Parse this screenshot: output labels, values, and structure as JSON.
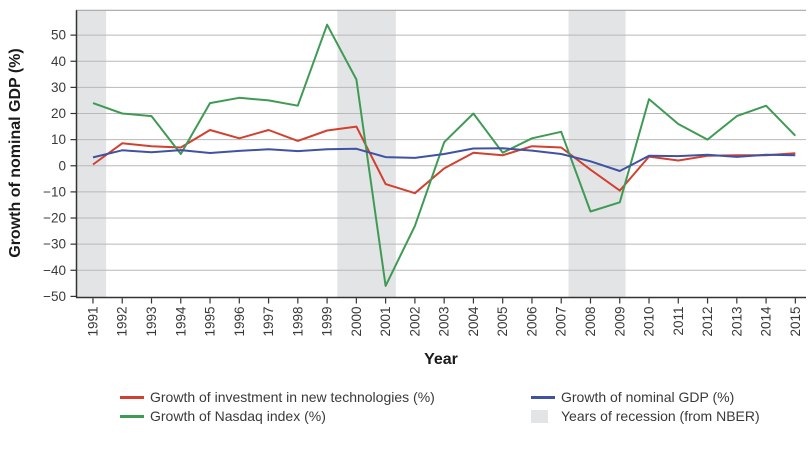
{
  "figure": {
    "y_axis_title": "Growth of nominal GDP (%)",
    "x_axis_title": "Year"
  },
  "colors": {
    "investment_line": "#d2402f",
    "nasdaq_line": "#3f9b54",
    "gdp_line": "#4052a2",
    "recession_band": "#e3e4e6",
    "gridline": "#b8b8b8",
    "plot_top_border": "#a6a6a6",
    "axis": "#333333",
    "tick_text": "#3a3a3a"
  },
  "legend": {
    "items": [
      {
        "label": "Growth of investment in new technologies (%)",
        "color": "#d2402f",
        "type": "line"
      },
      {
        "label": "Growth of Nasdaq index (%)",
        "color": "#3f9b54",
        "type": "line"
      },
      {
        "label": "Growth of nominal GDP (%)",
        "color": "#4052a2",
        "type": "line"
      },
      {
        "label": "Years of recession (from NBER)",
        "color": "#e3e4e6",
        "type": "area"
      }
    ]
  },
  "chart_data": {
    "type": "line",
    "title": "",
    "xlabel": "Year",
    "ylabel": "Growth of nominal GDP (%)",
    "x": [
      1991,
      1992,
      1993,
      1994,
      1995,
      1996,
      1997,
      1998,
      1999,
      2000,
      2001,
      2002,
      2003,
      2004,
      2005,
      2006,
      2007,
      2008,
      2009,
      2010,
      2011,
      2012,
      2013,
      2014,
      2015
    ],
    "series": [
      {
        "name": "Growth of investment in new technologies (%)",
        "color": "#d2402f",
        "values": [
          0.5,
          8.6,
          7.5,
          7.0,
          13.7,
          10.5,
          13.7,
          9.5,
          13.5,
          15.0,
          -7.0,
          -10.5,
          -1.0,
          5.0,
          4.0,
          7.5,
          7.0,
          -1.5,
          -9.5,
          3.5,
          2.0,
          3.8,
          4.0,
          4.0,
          4.8
        ]
      },
      {
        "name": "Growth of Nasdaq index (%)",
        "color": "#3f9b54",
        "values": [
          24.0,
          20.0,
          19.0,
          4.5,
          24.0,
          26.0,
          25.0,
          23.0,
          54.0,
          33.0,
          -46.0,
          -23.0,
          9.0,
          20.0,
          5.0,
          10.5,
          13.0,
          -17.5,
          -14.0,
          25.5,
          16.0,
          10.0,
          19.0,
          23.0,
          11.5
        ]
      },
      {
        "name": "Growth of nominal GDP (%)",
        "color": "#4052a2",
        "values": [
          3.2,
          5.9,
          5.2,
          6.0,
          4.9,
          5.7,
          6.3,
          5.6,
          6.3,
          6.5,
          3.3,
          3.0,
          4.5,
          6.6,
          6.7,
          5.8,
          4.5,
          1.7,
          -2.0,
          3.8,
          3.7,
          4.2,
          3.4,
          4.2,
          4.0
        ]
      }
    ],
    "recession_bands": [
      [
        1990.42,
        1991.45
      ],
      [
        1999.35,
        2001.35
      ],
      [
        2007.25,
        2009.2
      ]
    ],
    "xlim": [
      1990.42,
      2015.33
    ],
    "ylim": [
      -50,
      59.5
    ],
    "yticks": [
      50,
      40,
      30,
      20,
      10,
      0,
      -10,
      -20,
      -30,
      -40,
      -50
    ],
    "grid": "horizontal-only",
    "legend_position": "bottom",
    "source_note": "Years of recession shaded (from NBER)"
  }
}
